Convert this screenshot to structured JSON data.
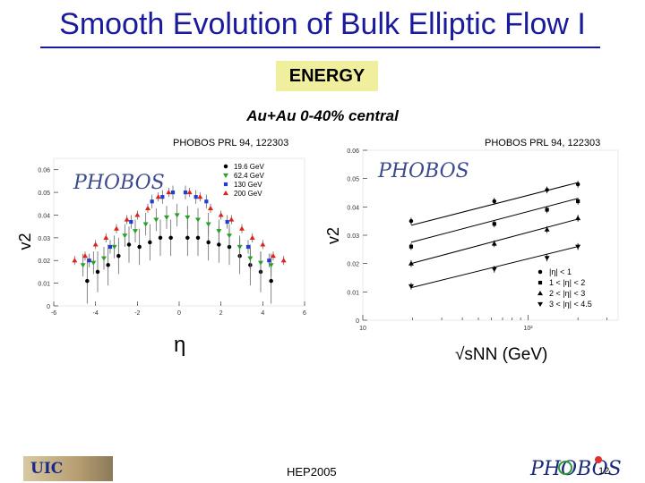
{
  "slide": {
    "title": "Smooth Evolution of Bulk Elliptic Flow I",
    "badge": "ENERGY",
    "subtitle": "Au+Au 0-40% central",
    "footer": "HEP2005",
    "page_number": "12",
    "footer_logo": "UIC",
    "accent_color": "#1a1a9c",
    "badge_color": "#f0ef9e"
  },
  "chart_data": [
    {
      "type": "scatter",
      "citation": "PHOBOS PRL 94, 122303",
      "watermark": "PHOBOS",
      "xlabel": "η",
      "ylabel": "v2",
      "xlim": [
        -6,
        6
      ],
      "ylim": [
        0,
        0.065
      ],
      "xticks": [
        "-6",
        "-4",
        "-2",
        "0",
        "2",
        "4",
        "6"
      ],
      "yticks": [
        "0",
        "0.01",
        "0.02",
        "0.03",
        "0.04",
        "0.05",
        "0.06"
      ],
      "legend_position": "top-right",
      "series": [
        {
          "name": "19.6 GeV",
          "marker": "circle",
          "color": "#000000",
          "x": [
            -4.4,
            -3.9,
            -3.4,
            -2.9,
            -2.4,
            -1.9,
            -1.4,
            -0.9,
            -0.4,
            0.4,
            0.9,
            1.4,
            1.9,
            2.4,
            2.9,
            3.4,
            3.9,
            4.4
          ],
          "y": [
            0.011,
            0.015,
            0.018,
            0.022,
            0.027,
            0.026,
            0.028,
            0.03,
            0.03,
            0.03,
            0.03,
            0.028,
            0.027,
            0.026,
            0.022,
            0.018,
            0.015,
            0.011
          ],
          "err": [
            0.01,
            0.009,
            0.009,
            0.008,
            0.008,
            0.008,
            0.008,
            0.008,
            0.008,
            0.008,
            0.008,
            0.008,
            0.008,
            0.008,
            0.008,
            0.009,
            0.009,
            0.01
          ]
        },
        {
          "name": "62.4 GeV",
          "marker": "triangle-down",
          "color": "#2aa02a",
          "x": [
            -4.6,
            -4.1,
            -3.6,
            -3.1,
            -2.6,
            -2.1,
            -1.6,
            -1.1,
            -0.6,
            -0.1,
            0.4,
            0.9,
            1.4,
            1.9,
            2.4,
            2.9,
            3.4,
            3.9,
            4.4
          ],
          "y": [
            0.018,
            0.019,
            0.021,
            0.026,
            0.031,
            0.033,
            0.036,
            0.038,
            0.039,
            0.04,
            0.039,
            0.038,
            0.036,
            0.033,
            0.031,
            0.026,
            0.021,
            0.019,
            0.018
          ],
          "err": [
            0.005,
            0.005,
            0.005,
            0.005,
            0.005,
            0.005,
            0.005,
            0.005,
            0.005,
            0.005,
            0.005,
            0.005,
            0.005,
            0.005,
            0.005,
            0.005,
            0.005,
            0.005,
            0.005
          ]
        },
        {
          "name": "130 GeV",
          "marker": "square",
          "color": "#1f3fd0",
          "x": [
            -4.3,
            -3.3,
            -2.3,
            -1.3,
            -0.8,
            -0.3,
            0.3,
            0.8,
            1.3,
            2.3,
            3.3,
            4.3
          ],
          "y": [
            0.02,
            0.026,
            0.037,
            0.046,
            0.048,
            0.05,
            0.05,
            0.048,
            0.046,
            0.037,
            0.026,
            0.02
          ],
          "err": [
            0.003,
            0.003,
            0.003,
            0.003,
            0.003,
            0.003,
            0.003,
            0.003,
            0.003,
            0.003,
            0.003,
            0.003
          ]
        },
        {
          "name": "200 GeV",
          "marker": "triangle-up",
          "color": "#e0201a",
          "x": [
            -5.0,
            -4.5,
            -4.0,
            -3.5,
            -3.0,
            -2.5,
            -2.0,
            -1.5,
            -1.0,
            -0.5,
            0.5,
            1.0,
            1.5,
            2.0,
            2.5,
            3.0,
            3.5,
            4.0,
            4.5,
            5.0
          ],
          "y": [
            0.02,
            0.022,
            0.027,
            0.03,
            0.034,
            0.038,
            0.04,
            0.043,
            0.048,
            0.05,
            0.05,
            0.048,
            0.043,
            0.04,
            0.038,
            0.034,
            0.03,
            0.027,
            0.022,
            0.02
          ],
          "err": [
            0.002,
            0.002,
            0.002,
            0.002,
            0.002,
            0.002,
            0.002,
            0.002,
            0.002,
            0.002,
            0.002,
            0.002,
            0.002,
            0.002,
            0.002,
            0.002,
            0.002,
            0.002,
            0.002,
            0.002
          ]
        }
      ]
    },
    {
      "type": "line",
      "citation": "PHOBOS PRL 94, 122303",
      "watermark": "PHOBOS",
      "xlabel": "√sNN (GeV)",
      "ylabel": "v2",
      "xscale": "log",
      "xlim": [
        10,
        350
      ],
      "ylim": [
        0,
        0.06
      ],
      "xticks": [
        "10",
        "10²"
      ],
      "yticks": [
        "0",
        "0.01",
        "0.02",
        "0.03",
        "0.04",
        "0.05",
        "0.06"
      ],
      "legend_position": "bottom-right",
      "series": [
        {
          "name": "|η| < 1",
          "marker": "circle",
          "x": [
            19.6,
            62.4,
            130,
            200
          ],
          "y": [
            0.035,
            0.042,
            0.046,
            0.048
          ],
          "fit": [
            0.0335,
            0.0486
          ]
        },
        {
          "name": "1 < |η| < 2",
          "marker": "square",
          "x": [
            19.6,
            62.4,
            130,
            200
          ],
          "y": [
            0.026,
            0.034,
            0.039,
            0.042
          ],
          "fit": [
            0.0275,
            0.043
          ]
        },
        {
          "name": "2 < |η| < 3",
          "marker": "triangle-up",
          "x": [
            19.6,
            62.4,
            130,
            200
          ],
          "y": [
            0.02,
            0.027,
            0.032,
            0.036
          ],
          "fit": [
            0.02,
            0.0357
          ]
        },
        {
          "name": "3 < |η| < 4.5",
          "marker": "triangle-down",
          "x": [
            19.6,
            62.4,
            130,
            200
          ],
          "y": [
            0.012,
            0.018,
            0.022,
            0.026
          ],
          "fit": [
            0.0115,
            0.026
          ]
        }
      ]
    }
  ]
}
